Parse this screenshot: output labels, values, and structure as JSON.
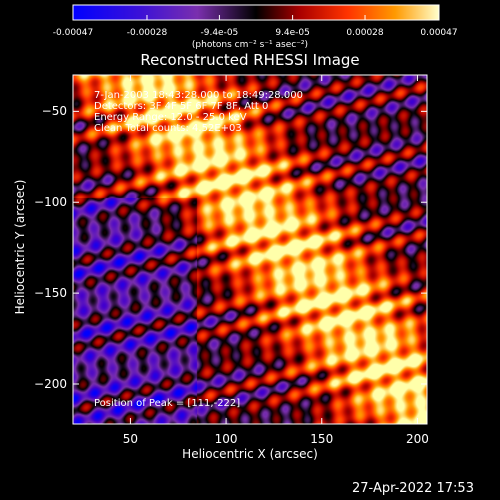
{
  "chart_data": {
    "type": "heatmap",
    "title": "Reconstructed RHESSI Image",
    "xlabel": "Heliocentric X (arcsec)",
    "ylabel": "Heliocentric Y (arcsec)",
    "xlim": [
      20,
      205
    ],
    "ylim": [
      -222,
      -30
    ],
    "x_ticks": [
      50,
      100,
      150,
      200
    ],
    "y_ticks": [
      -50,
      -100,
      -150,
      -200
    ],
    "colorbar": {
      "range": [
        -0.00047,
        0.00047
      ],
      "tick_labels": [
        "-0.00047",
        "-0.00028",
        "-9.4e-05",
        "9.4e-05",
        "0.00028",
        "0.00047"
      ],
      "tick_values": [
        -0.00047,
        -0.00028,
        -9.4e-05,
        9.4e-05,
        0.00028,
        0.00047
      ],
      "unit_label": "(photons cm⁻² s⁻¹ asec⁻²)",
      "colormap": [
        "#0000ff",
        "#4400cc",
        "#7a2fae",
        "#000000",
        "#aa0000",
        "#ff3300",
        "#ff9900",
        "#ffffaa"
      ]
    },
    "annotations": [
      "7-Jan-2003 18:43:28.000 to 18:49:28.000",
      "Detectors: 3F 4F 5F 6F 7F 8F, Att 0",
      "Energy Range: 12.0 - 25.0 keV",
      "Clean     Total counts: 4.52E+03",
      "Position of Peak = [111,-222]"
    ],
    "peak": [
      111,
      -222
    ]
  },
  "footer": {
    "timestamp": "27-Apr-2022 17:53"
  }
}
